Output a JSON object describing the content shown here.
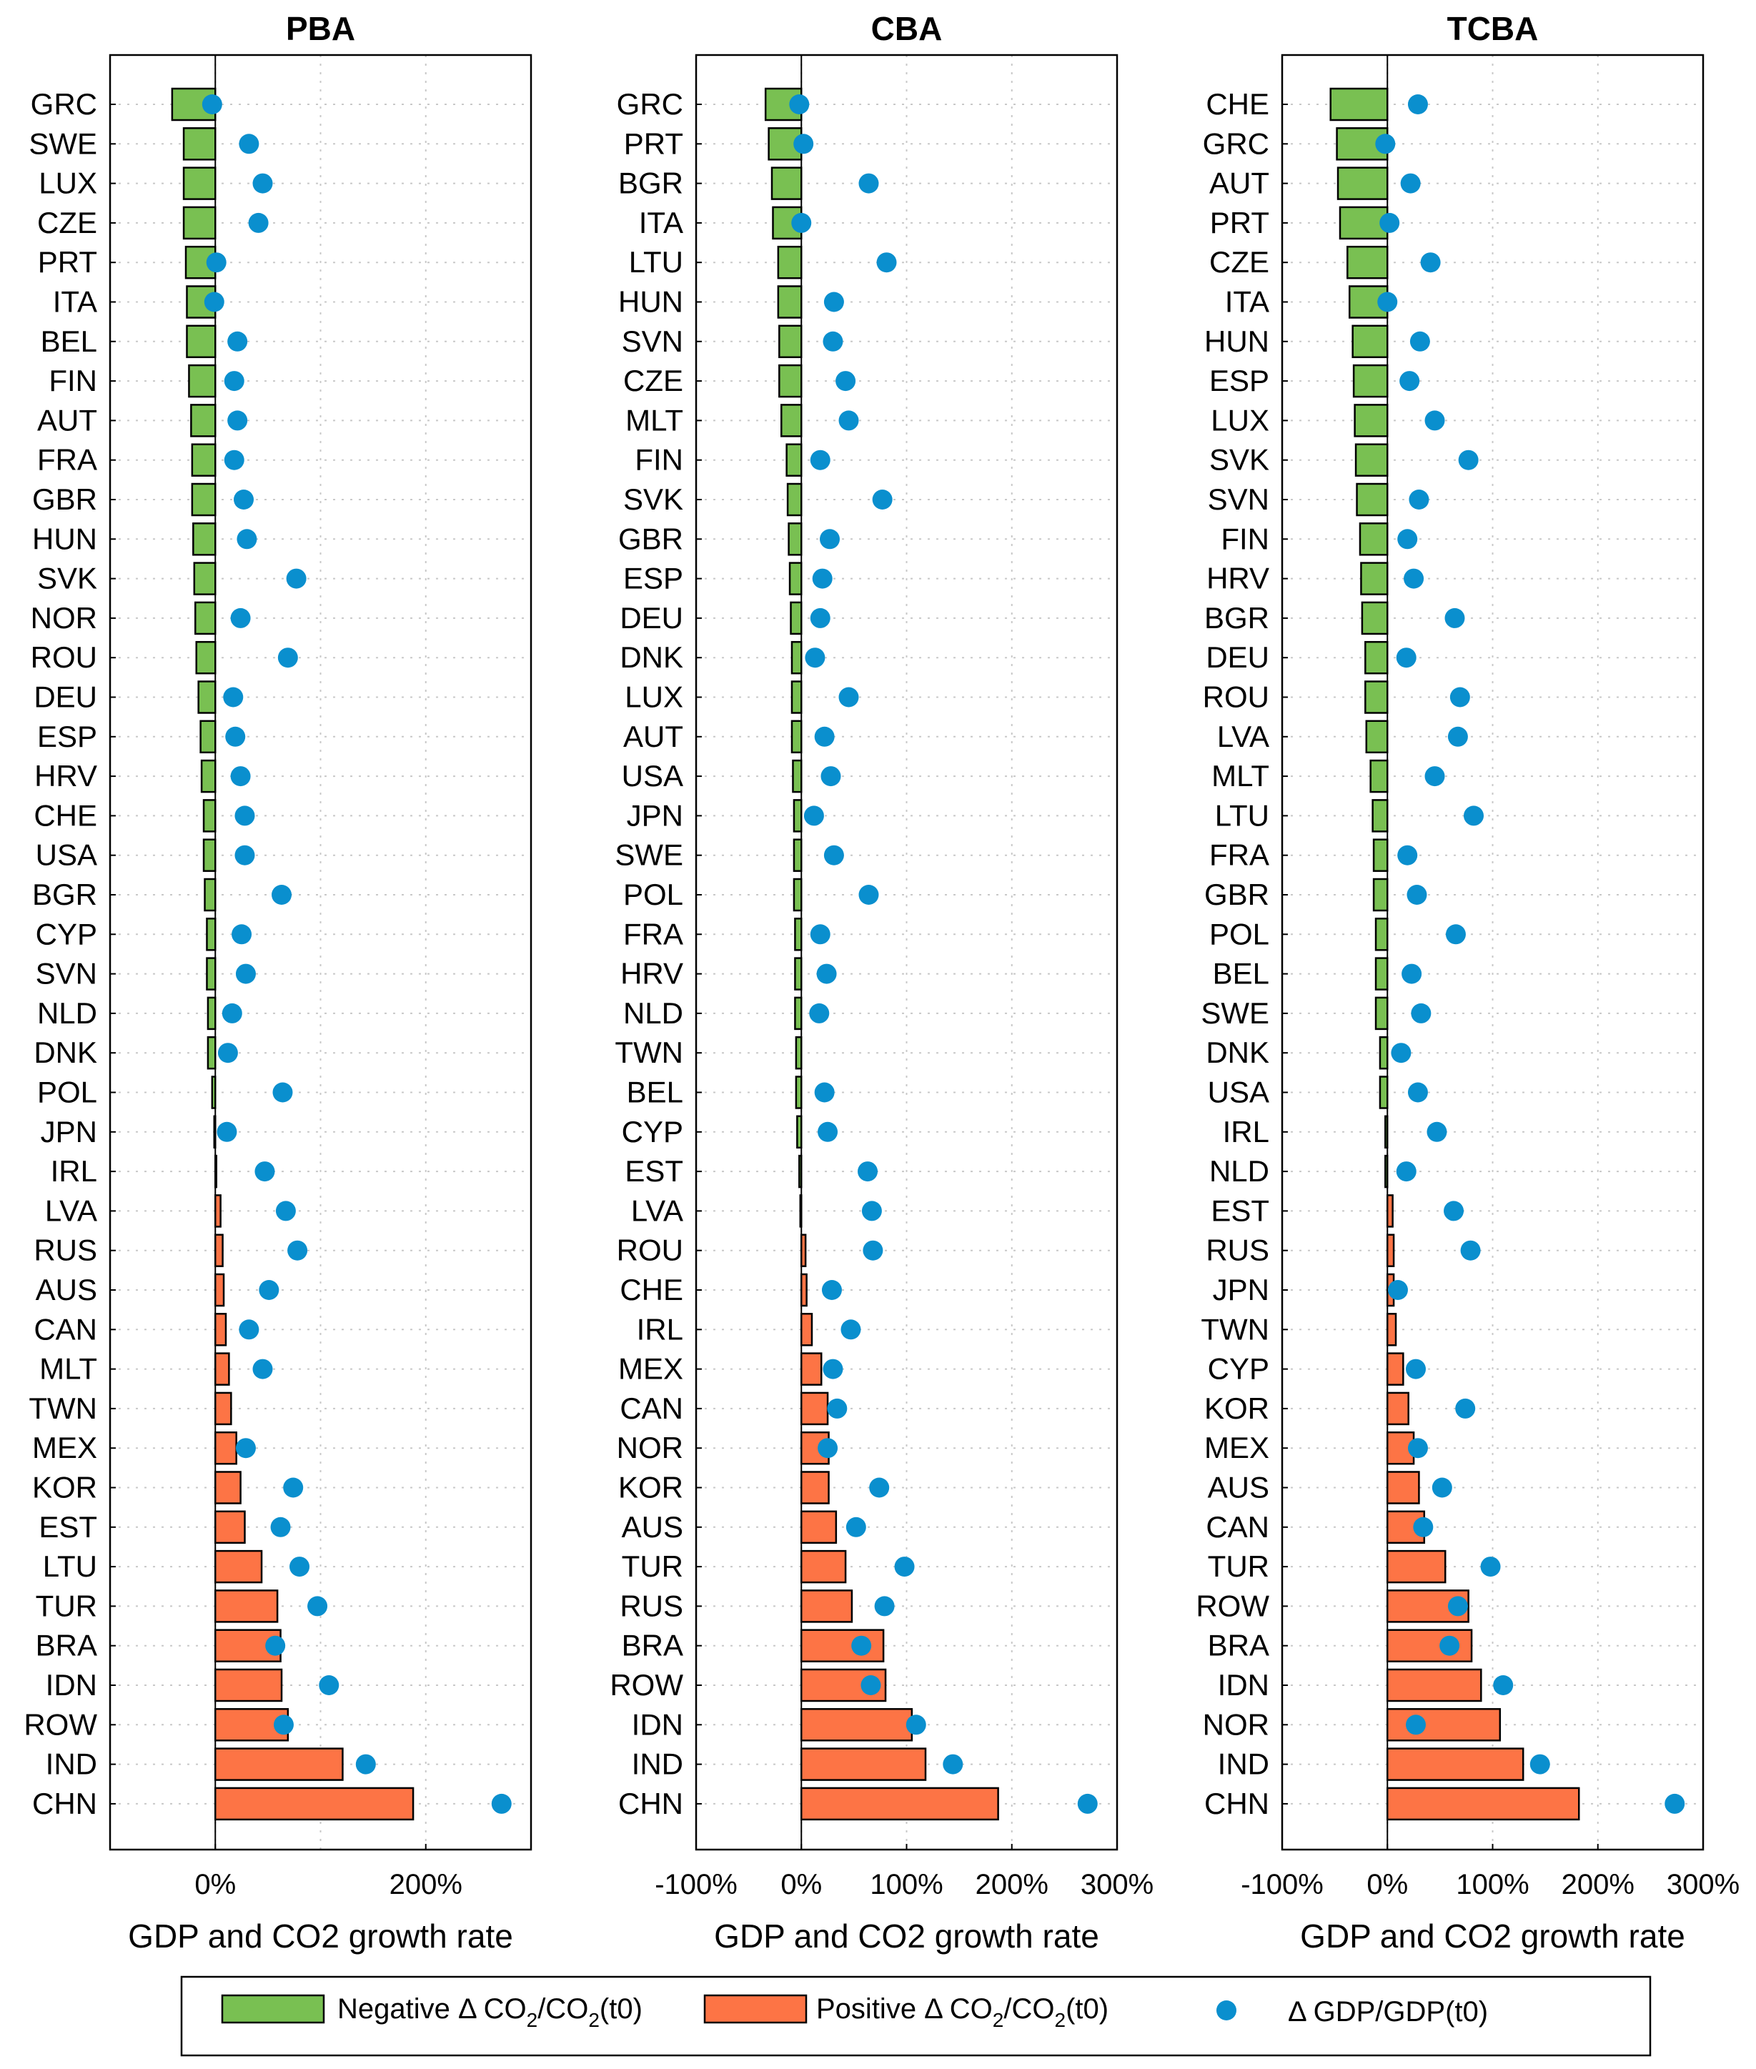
{
  "figure": {
    "xlabel": "GDP and CO2 growth rate",
    "colors": {
      "negative": "#79c052",
      "positive": "#fd7445",
      "dot": "#0a8fce",
      "grid": "#c8c8c8"
    }
  },
  "legend": {
    "negative": {
      "prefix": "Negative Δ CO",
      "mid": "/CO",
      "suffix": "(t0)",
      "sub": "2"
    },
    "positive": {
      "prefix": "Positive Δ CO",
      "mid": "/CO",
      "suffix": "(t0)",
      "sub": "2"
    },
    "gdp": {
      "label": "Δ GDP/GDP(t0)"
    }
  },
  "chart_data": [
    {
      "type": "bar",
      "orientation": "horizontal",
      "title": "PBA",
      "xlabel": "GDP and CO2 growth rate",
      "xlim": [
        -100,
        300
      ],
      "xticks": [
        0,
        200
      ],
      "xtick_labels": [
        "0%",
        "200%"
      ],
      "grid": true,
      "categories": [
        "GRC",
        "SWE",
        "LUX",
        "CZE",
        "PRT",
        "ITA",
        "BEL",
        "FIN",
        "AUT",
        "FRA",
        "GBR",
        "HUN",
        "SVK",
        "NOR",
        "ROU",
        "DEU",
        "ESP",
        "HRV",
        "CHE",
        "USA",
        "BGR",
        "CYP",
        "SVN",
        "NLD",
        "DNK",
        "POL",
        "JPN",
        "IRL",
        "LVA",
        "RUS",
        "AUS",
        "CAN",
        "MLT",
        "TWN",
        "MEX",
        "KOR",
        "EST",
        "LTU",
        "TUR",
        "BRA",
        "IDN",
        "ROW",
        "IND",
        "CHN"
      ],
      "series": [
        {
          "name": "CO2 growth",
          "values": [
            -41,
            -30,
            -30,
            -30,
            -28,
            -27,
            -27,
            -25,
            -23,
            -22,
            -22,
            -21,
            -20,
            -19,
            -18,
            -16,
            -14,
            -13,
            -11,
            -11,
            -10,
            -8,
            -8,
            -7,
            -7,
            -3,
            -1,
            1,
            5,
            7,
            8,
            10,
            13,
            15,
            20,
            24,
            28,
            44,
            59,
            62,
            63,
            69,
            121,
            188
          ]
        },
        {
          "name": "GDP growth",
          "values": [
            -3,
            32,
            45,
            41,
            1,
            -1,
            21,
            18,
            21,
            18,
            27,
            30,
            77,
            24,
            69,
            17,
            19,
            24,
            28,
            28,
            63,
            25,
            29,
            16,
            12,
            64,
            11,
            47,
            67,
            78,
            51,
            32,
            45,
            null,
            29,
            74,
            62,
            80,
            97,
            57,
            108,
            65,
            143,
            272
          ]
        }
      ]
    },
    {
      "type": "bar",
      "orientation": "horizontal",
      "title": "CBA",
      "xlabel": "GDP and CO2 growth rate",
      "xlim": [
        -100,
        300
      ],
      "xticks": [
        -100,
        0,
        100,
        200,
        300
      ],
      "xtick_labels": [
        "-100%",
        "0%",
        "100%",
        "200%",
        "300%"
      ],
      "grid": true,
      "categories": [
        "GRC",
        "PRT",
        "BGR",
        "ITA",
        "LTU",
        "HUN",
        "SVN",
        "CZE",
        "MLT",
        "FIN",
        "SVK",
        "GBR",
        "ESP",
        "DEU",
        "DNK",
        "LUX",
        "AUT",
        "USA",
        "JPN",
        "SWE",
        "POL",
        "FRA",
        "HRV",
        "NLD",
        "TWN",
        "BEL",
        "CYP",
        "EST",
        "LVA",
        "ROU",
        "CHE",
        "IRL",
        "MEX",
        "CAN",
        "NOR",
        "KOR",
        "AUS",
        "TUR",
        "RUS",
        "BRA",
        "ROW",
        "IDN",
        "IND",
        "CHN"
      ],
      "series": [
        {
          "name": "CO2 growth",
          "values": [
            -34,
            -31,
            -28,
            -27,
            -22,
            -22,
            -21,
            -21,
            -19,
            -14,
            -13,
            -12,
            -11,
            -10,
            -9,
            -9,
            -9,
            -8,
            -7,
            -7,
            -7,
            -6,
            -6,
            -6,
            -5,
            -5,
            -4,
            -2,
            -1,
            4,
            5,
            10,
            19,
            25,
            26,
            26,
            33,
            42,
            48,
            78,
            80,
            105,
            118,
            187
          ]
        },
        {
          "name": "GDP growth",
          "values": [
            -2,
            2,
            64,
            0,
            81,
            31,
            30,
            42,
            45,
            18,
            77,
            27,
            20,
            18,
            13,
            45,
            22,
            28,
            12,
            31,
            64,
            18,
            24,
            17,
            null,
            22,
            25,
            63,
            67,
            68,
            29,
            47,
            30,
            34,
            25,
            74,
            52,
            98,
            79,
            57,
            66,
            109,
            144,
            272
          ]
        }
      ]
    },
    {
      "type": "bar",
      "orientation": "horizontal",
      "title": "TCBA",
      "xlabel": "GDP and CO2 growth rate",
      "xlim": [
        -100,
        300
      ],
      "xticks": [
        -100,
        0,
        100,
        200,
        300
      ],
      "xtick_labels": [
        "-100%",
        "0%",
        "100%",
        "200%",
        "300%"
      ],
      "grid": true,
      "categories": [
        "CHE",
        "GRC",
        "AUT",
        "PRT",
        "CZE",
        "ITA",
        "HUN",
        "ESP",
        "LUX",
        "SVK",
        "SVN",
        "FIN",
        "HRV",
        "BGR",
        "DEU",
        "ROU",
        "LVA",
        "MLT",
        "LTU",
        "FRA",
        "GBR",
        "POL",
        "BEL",
        "SWE",
        "DNK",
        "USA",
        "IRL",
        "NLD",
        "EST",
        "RUS",
        "JPN",
        "TWN",
        "CYP",
        "KOR",
        "MEX",
        "AUS",
        "CAN",
        "TUR",
        "ROW",
        "BRA",
        "IDN",
        "NOR",
        "IND",
        "CHN"
      ],
      "series": [
        {
          "name": "CO2 growth",
          "values": [
            -54,
            -48,
            -47,
            -45,
            -38,
            -36,
            -33,
            -32,
            -31,
            -30,
            -29,
            -26,
            -25,
            -24,
            -21,
            -21,
            -20,
            -16,
            -14,
            -13,
            -13,
            -11,
            -11,
            -11,
            -7,
            -7,
            -2,
            -2,
            5,
            6,
            6,
            8,
            15,
            20,
            25,
            30,
            35,
            55,
            77,
            80,
            89,
            107,
            129,
            182
          ]
        },
        {
          "name": "GDP growth",
          "values": [
            29,
            -2,
            22,
            2,
            41,
            0,
            31,
            21,
            45,
            77,
            30,
            19,
            25,
            64,
            18,
            69,
            67,
            45,
            82,
            19,
            28,
            65,
            23,
            32,
            13,
            29,
            47,
            18,
            63,
            79,
            10,
            null,
            27,
            74,
            29,
            52,
            34,
            98,
            67,
            59,
            110,
            27,
            145,
            273
          ]
        }
      ]
    }
  ]
}
